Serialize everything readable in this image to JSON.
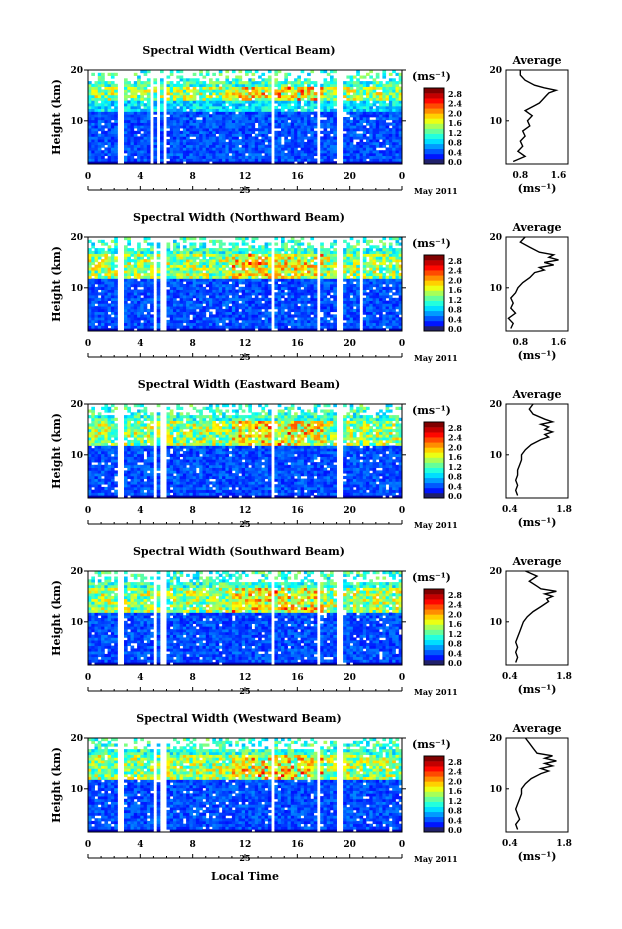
{
  "figure": {
    "xlabel": "Local Time",
    "ylabel": "Height (km)",
    "date_label": "May 2011",
    "day_label": "25",
    "colorbar_unit": "(ms⁻¹)",
    "avg_title": "Average",
    "avg_xlabel": "(ms⁻¹)"
  },
  "chart_data": [
    {
      "type": "heatmap",
      "title": "Spectral Width (Vertical Beam)",
      "x_ticks": [
        "0",
        "4",
        "8",
        "12",
        "16",
        "20",
        "0"
      ],
      "y_ticks": [
        "10",
        "20"
      ],
      "xlim": [
        0,
        24
      ],
      "ylim": [
        1.5,
        20
      ],
      "colorbar_ticks": [
        "2.8",
        "2.4",
        "2.0",
        "1.6",
        "1.2",
        "0.8",
        "0.4",
        "0.0"
      ],
      "gaps": [
        [
          2.3,
          2.7
        ],
        [
          4.8,
          5.1
        ],
        [
          5.3,
          5.5
        ],
        [
          5.7,
          6.0
        ],
        [
          14.0,
          14.3
        ],
        [
          17.5,
          17.8
        ],
        [
          19.0,
          19.5
        ]
      ],
      "high_band": [
        14,
        16.5
      ],
      "tropopause": 12,
      "avg_profile": {
        "xticks": [
          "0.8",
          "1.6"
        ],
        "xlim": [
          0.5,
          1.8
        ],
        "height": [
          2,
          3,
          4,
          5,
          6,
          7,
          8,
          9,
          10,
          11,
          12,
          13,
          13.5,
          14,
          14.5,
          15,
          15.5,
          16,
          16.5,
          17,
          18,
          19,
          20
        ],
        "value": [
          0.65,
          0.9,
          0.75,
          0.85,
          0.8,
          0.9,
          0.85,
          1.0,
          0.95,
          1.05,
          0.9,
          1.1,
          1.2,
          1.25,
          1.3,
          1.35,
          1.4,
          1.55,
          1.3,
          1.1,
          0.9,
          0.8,
          0.8
        ]
      }
    },
    {
      "type": "heatmap",
      "title": "Spectral Width (Northward Beam)",
      "x_ticks": [
        "0",
        "4",
        "8",
        "12",
        "16",
        "20",
        "0"
      ],
      "y_ticks": [
        "10",
        "20"
      ],
      "xlim": [
        0,
        24
      ],
      "ylim": [
        1.5,
        20
      ],
      "colorbar_ticks": [
        "2.8",
        "2.4",
        "2.0",
        "1.6",
        "1.2",
        "0.8",
        "0.4",
        "0.0"
      ],
      "gaps": [
        [
          2.3,
          2.7
        ],
        [
          5.0,
          5.2
        ],
        [
          5.6,
          5.9
        ],
        [
          14.0,
          14.3
        ],
        [
          17.5,
          17.8
        ],
        [
          19.0,
          19.4
        ],
        [
          20.8,
          21.1
        ]
      ],
      "high_band": [
        12,
        17
      ],
      "tropopause": 12,
      "avg_profile": {
        "xticks": [
          "0.8",
          "1.6"
        ],
        "xlim": [
          0.5,
          1.8
        ],
        "height": [
          2,
          3,
          4,
          5,
          6,
          7,
          8,
          9,
          10,
          11,
          12,
          13,
          13.5,
          14,
          14.5,
          15,
          15.5,
          16,
          16.5,
          17,
          18,
          19,
          20
        ],
        "value": [
          0.6,
          0.65,
          0.55,
          0.7,
          0.6,
          0.65,
          0.6,
          0.7,
          0.75,
          0.85,
          1.0,
          1.1,
          1.3,
          1.2,
          1.5,
          1.3,
          1.6,
          1.4,
          1.5,
          1.2,
          1.0,
          0.8,
          0.9
        ]
      }
    },
    {
      "type": "heatmap",
      "title": "Spectral Width (Eastward Beam)",
      "x_ticks": [
        "0",
        "4",
        "8",
        "12",
        "16",
        "20",
        "0"
      ],
      "y_ticks": [
        "10",
        "20"
      ],
      "xlim": [
        0,
        24
      ],
      "ylim": [
        1.5,
        20
      ],
      "colorbar_ticks": [
        "2.8",
        "2.4",
        "2.0",
        "1.6",
        "1.2",
        "0.8",
        "0.4",
        "0.0"
      ],
      "gaps": [
        [
          2.3,
          2.7
        ],
        [
          5.0,
          5.2
        ],
        [
          5.6,
          5.9
        ],
        [
          14.0,
          14.3
        ],
        [
          19.0,
          19.4
        ]
      ],
      "high_band": [
        12,
        17
      ],
      "tropopause": 12,
      "avg_profile": {
        "xticks": [
          "0.4",
          "1.8"
        ],
        "xlim": [
          0.3,
          1.9
        ],
        "height": [
          2,
          3,
          4,
          5,
          6,
          7,
          8,
          9,
          10,
          11,
          12,
          13,
          13.5,
          14,
          14.5,
          15,
          15.5,
          16,
          16.5,
          17,
          18,
          19,
          20
        ],
        "value": [
          0.6,
          0.55,
          0.6,
          0.55,
          0.6,
          0.6,
          0.65,
          0.7,
          0.7,
          0.8,
          0.95,
          1.2,
          1.4,
          1.3,
          1.5,
          1.3,
          1.4,
          1.2,
          1.5,
          1.3,
          1.0,
          0.9,
          1.0
        ]
      }
    },
    {
      "type": "heatmap",
      "title": "Spectral Width (Southward Beam)",
      "x_ticks": [
        "0",
        "4",
        "8",
        "12",
        "16",
        "20",
        "0"
      ],
      "y_ticks": [
        "10",
        "20"
      ],
      "xlim": [
        0,
        24
      ],
      "ylim": [
        1.5,
        20
      ],
      "colorbar_ticks": [
        "2.8",
        "2.4",
        "2.0",
        "1.6",
        "1.2",
        "0.8",
        "0.4",
        "0.0"
      ],
      "gaps": [
        [
          2.3,
          2.7
        ],
        [
          5.0,
          5.2
        ],
        [
          5.6,
          5.9
        ],
        [
          14.0,
          14.3
        ],
        [
          17.5,
          17.8
        ],
        [
          19.0,
          19.4
        ]
      ],
      "high_band": [
        12,
        17
      ],
      "tropopause": 12,
      "avg_profile": {
        "xticks": [
          "0.4",
          "1.8"
        ],
        "xlim": [
          0.3,
          1.9
        ],
        "height": [
          2,
          3,
          4,
          5,
          6,
          7,
          8,
          9,
          10,
          11,
          12,
          13,
          13.5,
          14,
          14.5,
          15,
          15.5,
          16,
          16.5,
          17,
          18,
          19,
          20
        ],
        "value": [
          0.55,
          0.6,
          0.55,
          0.6,
          0.55,
          0.6,
          0.65,
          0.7,
          0.75,
          0.85,
          1.0,
          1.2,
          1.3,
          1.4,
          1.35,
          1.5,
          1.3,
          1.6,
          1.2,
          1.1,
          0.9,
          1.1,
          0.8
        ]
      }
    },
    {
      "type": "heatmap",
      "title": "Spectral Width (Westward Beam)",
      "x_ticks": [
        "0",
        "4",
        "8",
        "12",
        "16",
        "20",
        "0"
      ],
      "y_ticks": [
        "10",
        "20"
      ],
      "xlim": [
        0,
        24
      ],
      "ylim": [
        1.5,
        20
      ],
      "colorbar_ticks": [
        "2.8",
        "2.4",
        "2.0",
        "1.6",
        "1.2",
        "0.8",
        "0.4",
        "0.0"
      ],
      "gaps": [
        [
          2.3,
          2.7
        ],
        [
          5.0,
          5.2
        ],
        [
          5.6,
          5.9
        ],
        [
          14.0,
          14.3
        ],
        [
          17.5,
          17.8
        ],
        [
          19.0,
          19.4
        ]
      ],
      "high_band": [
        12,
        17
      ],
      "tropopause": 12,
      "avg_profile": {
        "xticks": [
          "0.4",
          "1.8"
        ],
        "xlim": [
          0.3,
          1.9
        ],
        "height": [
          2,
          3,
          4,
          5,
          6,
          7,
          8,
          9,
          10,
          11,
          12,
          13,
          13.5,
          14,
          14.5,
          15,
          15.5,
          16,
          16.5,
          17,
          18,
          19,
          20
        ],
        "value": [
          0.6,
          0.55,
          0.65,
          0.6,
          0.55,
          0.6,
          0.65,
          0.7,
          0.7,
          0.8,
          0.95,
          1.2,
          1.4,
          1.2,
          1.5,
          1.3,
          1.6,
          1.3,
          1.5,
          1.1,
          1.0,
          0.9,
          0.8
        ]
      }
    }
  ]
}
